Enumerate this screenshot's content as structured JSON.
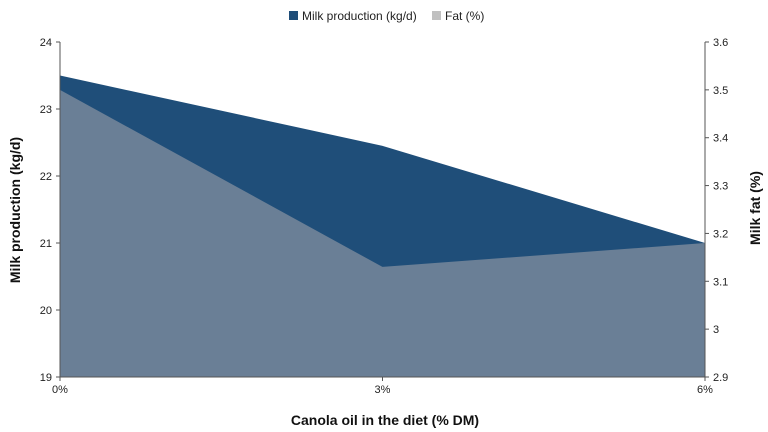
{
  "chart_data": {
    "type": "area",
    "categories": [
      "0%",
      "3%",
      "6%"
    ],
    "series": [
      {
        "name": "Milk production (kg/d)",
        "axis": "left",
        "values": [
          23.5,
          22.45,
          21.0
        ],
        "color": "#1f4e79"
      },
      {
        "name": "Fat (%)",
        "axis": "right",
        "values": [
          3.5,
          3.13,
          3.18
        ],
        "color": "#6a7f96"
      }
    ],
    "xlabel": "Canola oil in the diet (% DM)",
    "ylabel": "Milk production (kg/d)",
    "y2label": "Milk fat (%)",
    "ylim": [
      19,
      24
    ],
    "y2lim": [
      2.9,
      3.6
    ],
    "yticks": [
      "19",
      "20",
      "21",
      "22",
      "23",
      "24"
    ],
    "y2ticks": [
      "2.9",
      "3",
      "3.1",
      "3.2",
      "3.3",
      "3.4",
      "3.5",
      "3.6"
    ],
    "legend_position": "top-center",
    "grid": false,
    "legend_swatch_colors": [
      "#1f4e79",
      "#c0c0c0"
    ]
  }
}
